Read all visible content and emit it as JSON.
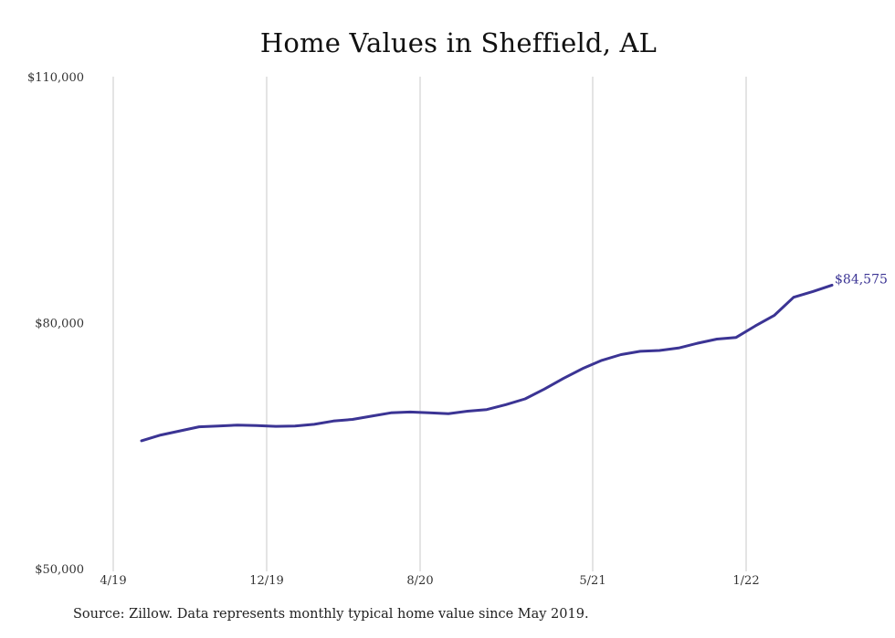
{
  "chart_data": {
    "type": "line",
    "title": "Home Values in Sheffield, AL",
    "xlabel": "",
    "ylabel": "",
    "x_ticks": [
      "4/19",
      "12/19",
      "8/20",
      "5/21",
      "1/22"
    ],
    "y_ticks": [
      "$110,000",
      "$80,000",
      "$50,000"
    ],
    "ylim": [
      50000,
      110000
    ],
    "grid": "vertical",
    "line_color": "#3b3494",
    "grid_color": "#c9c9c9",
    "series": [
      {
        "x": [
          "5/19",
          "6/19",
          "7/19",
          "8/19",
          "9/19",
          "10/19",
          "11/19",
          "12/19",
          "1/20",
          "2/20",
          "3/20",
          "4/20",
          "5/20",
          "6/20",
          "7/20",
          "8/20",
          "9/20",
          "10/20",
          "11/20",
          "12/20",
          "1/21",
          "2/21",
          "3/21",
          "4/21",
          "5/21",
          "6/21",
          "7/21",
          "8/21",
          "9/21",
          "10/21",
          "11/21",
          "12/21",
          "1/22",
          "2/22",
          "3/22",
          "4/22",
          "5/22"
        ],
        "values": [
          65600,
          66300,
          66800,
          67300,
          67400,
          67500,
          67450,
          67350,
          67400,
          67600,
          68000,
          68200,
          68600,
          69000,
          69100,
          69000,
          68900,
          69200,
          69400,
          70000,
          70700,
          71900,
          73200,
          74400,
          75400,
          76100,
          76500,
          76600,
          76900,
          77500,
          78000,
          78200,
          79600,
          80900,
          83100,
          83800,
          84575
        ]
      }
    ],
    "end_label": "$84,575",
    "source": "Source: Zillow. Data represents monthly typical home value since May 2019."
  }
}
